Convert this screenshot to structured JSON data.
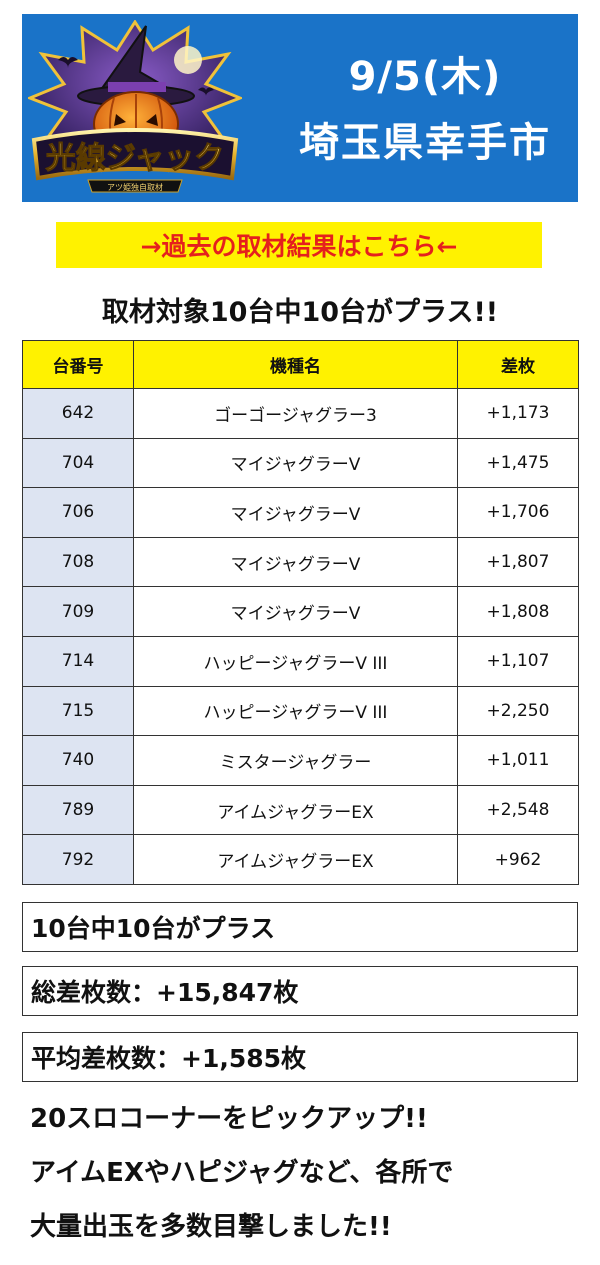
{
  "banner": {
    "date": "9/5(木)",
    "place": "埼玉県幸手市",
    "logo_text": "光線ジャック",
    "logo_subtext": "アツ姫独自取材"
  },
  "past_link": "→過去の取材結果はこちら←",
  "headline": "取材対象10台中10台がプラス!!",
  "table": {
    "headers": [
      "台番号",
      "機種名",
      "差枚"
    ],
    "rows": [
      {
        "number": "642",
        "model": "ゴーゴージャグラー3",
        "diff": "+1,173"
      },
      {
        "number": "704",
        "model": "マイジャグラーV",
        "diff": "+1,475"
      },
      {
        "number": "706",
        "model": "マイジャグラーV",
        "diff": "+1,706"
      },
      {
        "number": "708",
        "model": "マイジャグラーV",
        "diff": "+1,807"
      },
      {
        "number": "709",
        "model": "マイジャグラーV",
        "diff": "+1,808"
      },
      {
        "number": "714",
        "model": "ハッピージャグラーV III",
        "diff": "+1,107"
      },
      {
        "number": "715",
        "model": "ハッピージャグラーV III",
        "diff": "+2,250"
      },
      {
        "number": "740",
        "model": "ミスタージャグラー",
        "diff": "+1,011"
      },
      {
        "number": "789",
        "model": "アイムジャグラーEX",
        "diff": "+2,548"
      },
      {
        "number": "792",
        "model": "アイムジャグラーEX",
        "diff": "+962"
      }
    ]
  },
  "summary": {
    "plus_count": "10台中10台がプラス",
    "total": "総差枚数：+15,847枚",
    "average": "平均差枚数：+1,585枚"
  },
  "comment": {
    "line1": "20スロコーナーをピックアップ!!",
    "line2": "アイムEXやハピジャグなど、各所で",
    "line3": "大量出玉を多数目撃しました!!"
  },
  "colors": {
    "banner_bg": "#1a73c8",
    "highlight_yellow": "#fff200",
    "link_red": "#e5201d",
    "number_cell_bg": "#dde4f2"
  }
}
